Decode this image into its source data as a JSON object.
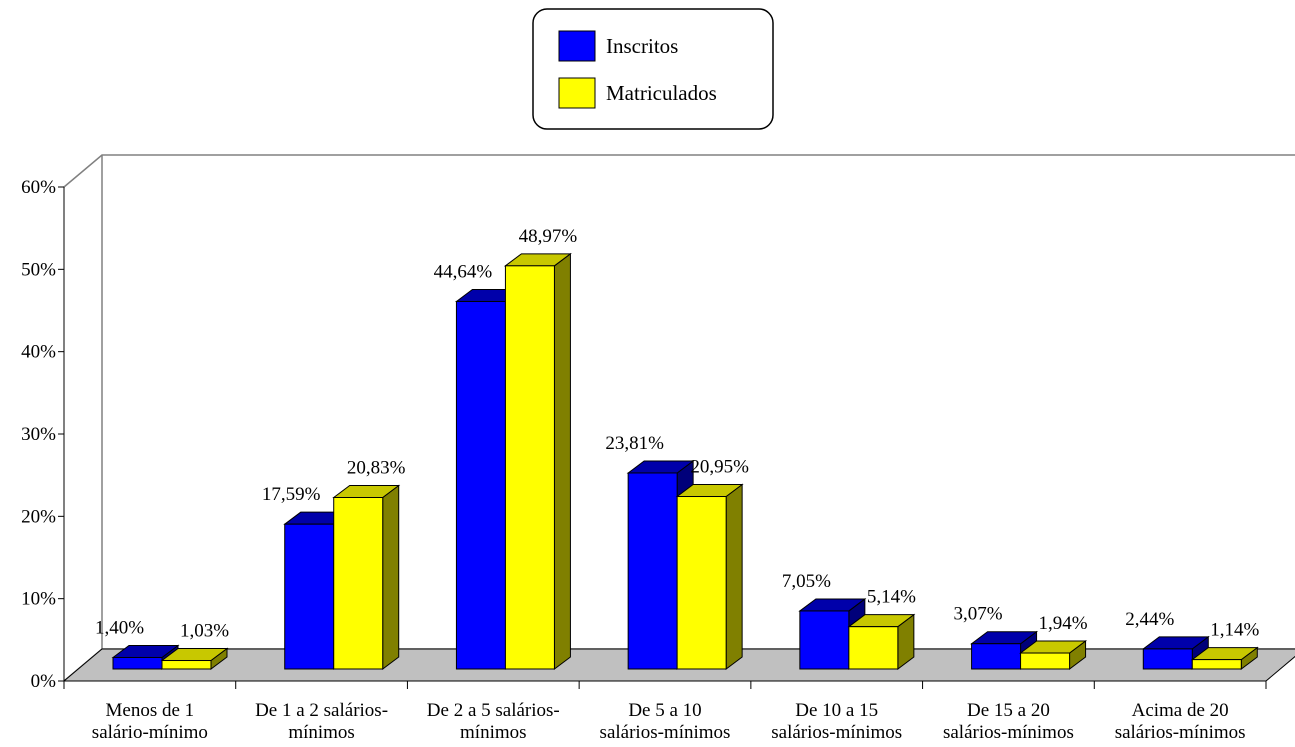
{
  "chart_data": {
    "type": "bar",
    "categories": [
      [
        "Menos de 1",
        "salário-mínimo"
      ],
      [
        "De 1 a 2 salários-",
        "mínimos"
      ],
      [
        "De 2 a 5 salários-",
        "mínimos"
      ],
      [
        "De 5 a 10",
        "salários-mínimos"
      ],
      [
        "De 10 a 15",
        "salários-mínimos"
      ],
      [
        "De 15 a 20",
        "salários-mínimos"
      ],
      [
        "Acima de 20",
        "salários-mínimos"
      ]
    ],
    "series": [
      {
        "name": "Inscritos",
        "values": [
          1.4,
          17.59,
          44.64,
          23.81,
          7.05,
          3.07,
          2.44
        ],
        "labels": [
          "1,40%",
          "17,59%",
          "44,64%",
          "23,81%",
          "7,05%",
          "3,07%",
          "2,44%"
        ],
        "color": "#0000ff",
        "top_color": "#0000aa",
        "side_color": "#00007a"
      },
      {
        "name": "Matriculados",
        "values": [
          1.03,
          20.83,
          48.97,
          20.95,
          5.14,
          1.94,
          1.14
        ],
        "labels": [
          "1,03%",
          "20,83%",
          "48,97%",
          "20,95%",
          "5,14%",
          "1,94%",
          "1,14%"
        ],
        "color": "#ffff00",
        "top_color": "#c8c800",
        "side_color": "#808000"
      }
    ],
    "y_ticks": [
      "0%",
      "10%",
      "20%",
      "30%",
      "40%",
      "50%",
      "60%"
    ],
    "ylim": [
      0,
      60
    ],
    "grid": false,
    "legend": "top-center",
    "floor_color": "#c0c0c0"
  }
}
